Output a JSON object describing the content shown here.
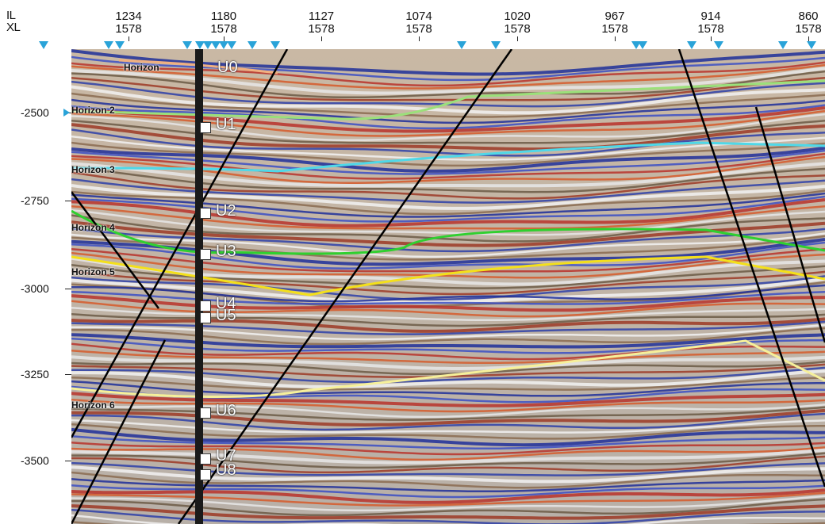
{
  "axes": {
    "il_label": "IL",
    "xl_label": "XL",
    "columns": [
      {
        "il": "1234",
        "xl": "1578"
      },
      {
        "il": "1180",
        "xl": "1578"
      },
      {
        "il": "1127",
        "xl": "1578"
      },
      {
        "il": "1074",
        "xl": "1578"
      },
      {
        "il": "1020",
        "xl": "1578"
      },
      {
        "il": "967",
        "xl": "1578"
      },
      {
        "il": "914",
        "xl": "1578"
      },
      {
        "il": "860",
        "xl": "1578"
      }
    ],
    "depths": [
      "-2500",
      "-2750",
      "-3000",
      "-3250",
      "-3500"
    ]
  },
  "horizons": [
    {
      "name": "Horizon U0",
      "label": "Horizon",
      "color": "#f0b080"
    },
    {
      "name": "Horizon 2",
      "label": "Horizon 2",
      "color": "#9be07a"
    },
    {
      "name": "Horizon 3",
      "label": "Horizon 3",
      "color": "#4fd8e8"
    },
    {
      "name": "Horizon 4",
      "label": "Horizon 4",
      "color": "#2fd02f"
    },
    {
      "name": "Horizon 5",
      "label": "Horizon 5",
      "color": "#f4e01a"
    },
    {
      "name": "Horizon 6",
      "label": "Horizon 6",
      "color": "#f6f09a"
    }
  ],
  "well_tops": [
    "U0",
    "U1",
    "U2",
    "U3",
    "U4",
    "U5",
    "U6",
    "U7",
    "U8"
  ],
  "colors": {
    "well_marker": "#2aa3d8",
    "fault": "#000000"
  }
}
